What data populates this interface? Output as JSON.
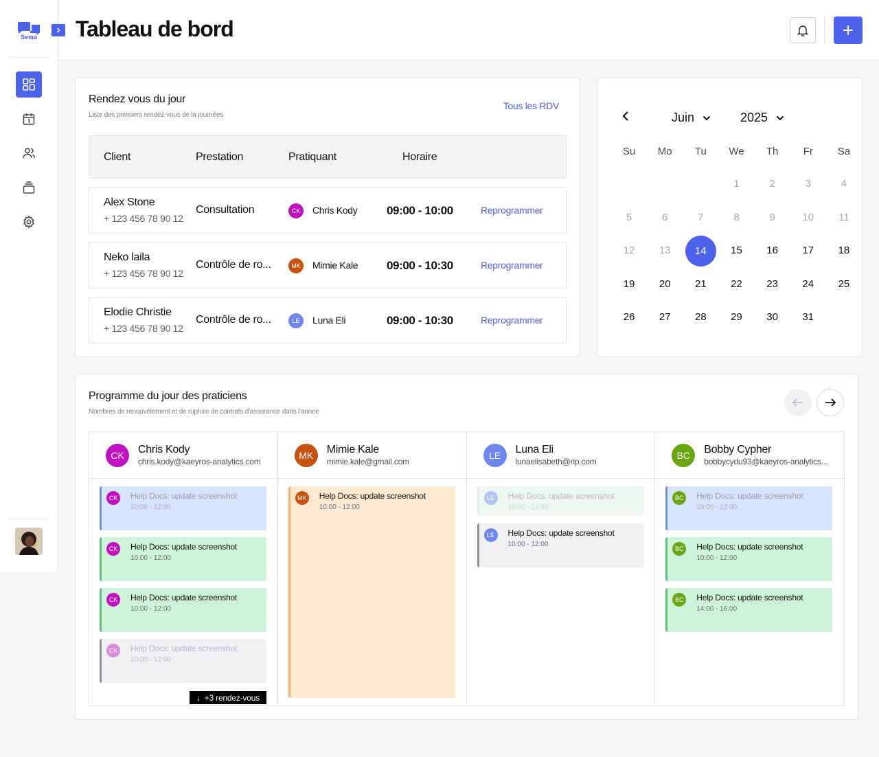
{
  "colors": {
    "accent": "#4d62ea",
    "ck": "#c20fc2",
    "mk": "#c65110",
    "le": "#6f86f1",
    "bc": "#6aa611"
  },
  "sidebar": {
    "logo_text": "Sema",
    "items": [
      {
        "name": "dashboard-icon",
        "active": true
      },
      {
        "name": "calendar-icon",
        "active": false
      },
      {
        "name": "users-icon",
        "active": false
      },
      {
        "name": "stack-icon",
        "active": false
      },
      {
        "name": "gear-icon",
        "active": false
      }
    ]
  },
  "header": {
    "title": "Tableau de bord"
  },
  "appointments": {
    "title": "Rendez vous du jour",
    "subtitle": "Liste des premiers rendez-vous de la journées",
    "all_link": "Tous les RDV",
    "columns": [
      "Client",
      "Prestation",
      "Pratiquant",
      "Horaire"
    ],
    "rows": [
      {
        "client": "Alex Stone",
        "phone": "+ 123 456 78 90 12",
        "service": "Consultation",
        "initials": "CK",
        "practitioner": "Chris Kody",
        "time": "09:00 - 10:00",
        "action": "Reprogrammer"
      },
      {
        "client": "Neko laila",
        "phone": "+ 123 456 78 90 12",
        "service": "Contrôle de ro...",
        "initials": "MK",
        "practitioner": "Mimie Kale",
        "time": "09:00 - 10:30",
        "action": "Reprogrammer"
      },
      {
        "client": "Elodie Christie",
        "phone": "+ 123 456 78 90 12",
        "service": "Contrôle de ro...",
        "initials": "LE",
        "practitioner": "Luna Eli",
        "time": "09:00 - 10:30",
        "action": "Reprogrammer"
      }
    ]
  },
  "calendar": {
    "month": "Juin",
    "year": "2025",
    "weekdays": [
      "Su",
      "Mo",
      "Tu",
      "We",
      "Th",
      "Fr",
      "Sa"
    ],
    "selected_day": "14",
    "weeks": [
      [
        "",
        "",
        "",
        "1",
        "2",
        "3",
        "4"
      ],
      [
        "5",
        "6",
        "7",
        "8",
        "9",
        "10",
        "11"
      ],
      [
        "12",
        "13",
        "14",
        "15",
        "16",
        "17",
        "18"
      ],
      [
        "19",
        "20",
        "21",
        "22",
        "23",
        "24",
        "25"
      ],
      [
        "26",
        "27",
        "28",
        "29",
        "30",
        "31",
        ""
      ]
    ],
    "muted_days": [
      "1",
      "2",
      "3",
      "4",
      "5",
      "6",
      "7",
      "8",
      "9",
      "10",
      "11",
      "12",
      "13"
    ]
  },
  "schedule": {
    "title": "Programme du jour des praticiens",
    "subtitle": "Nombres de renouvèlement et de rupture de contrats d'assurance dans l'annee",
    "more_label": "+3 rendez-vous",
    "practitioners": [
      {
        "initials": "CK",
        "name": "Chris Kody",
        "email": "chris.kody@kaeyros-analytics.com"
      },
      {
        "initials": "MK",
        "name": "Mimie Kale",
        "email": "mimie.kale@gmail.com"
      },
      {
        "initials": "LE",
        "name": "Luna Eli",
        "email": "lunaelisabeth@rip.com"
      },
      {
        "initials": "BC",
        "name": "Bobby Cypher",
        "email": "bobbycydu93@kaeyros-analytics..."
      }
    ],
    "event_title": "Help Docs: update screenshot",
    "event_time_a": "10:00 - 12:00",
    "event_time_b": "14:00 - 16:00"
  }
}
